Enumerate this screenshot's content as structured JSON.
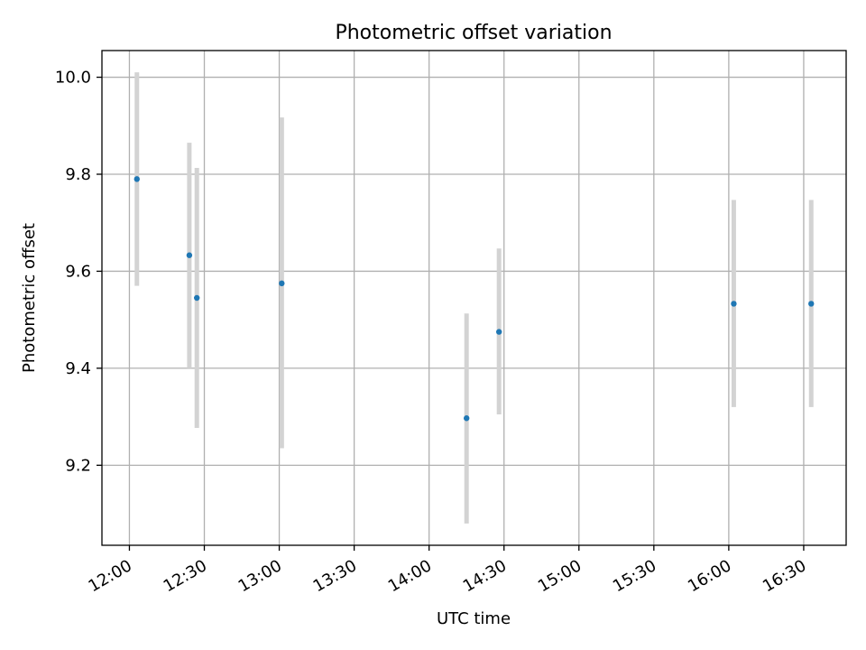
{
  "chart_data": {
    "type": "scatter",
    "title": "Photometric offset variation",
    "xlabel": "UTC time",
    "ylabel": "Photometric offset",
    "x_ticks": [
      "12:00",
      "12:30",
      "13:00",
      "13:30",
      "14:00",
      "14:30",
      "15:00",
      "15:30",
      "16:00",
      "16:30"
    ],
    "y_ticks": [
      "9.2",
      "9.4",
      "9.6",
      "9.8",
      "10.0"
    ],
    "xlim": [
      "11:49",
      "16:47"
    ],
    "ylim": [
      9.035,
      10.055
    ],
    "grid": true,
    "colors": {
      "point": "#1f77b4",
      "errorbar": "#d3d3d3",
      "grid": "#b0b0b0"
    },
    "series": [
      {
        "points": [
          {
            "x": "12:03",
            "y": 9.79,
            "err_low": 9.57,
            "err_high": 10.01
          },
          {
            "x": "12:24",
            "y": 9.633,
            "err_low": 9.4,
            "err_high": 9.865
          },
          {
            "x": "12:27",
            "y": 9.545,
            "err_low": 9.277,
            "err_high": 9.813
          },
          {
            "x": "13:01",
            "y": 9.575,
            "err_low": 9.235,
            "err_high": 9.917
          },
          {
            "x": "14:15",
            "y": 9.297,
            "err_low": 9.08,
            "err_high": 9.513
          },
          {
            "x": "14:28",
            "y": 9.475,
            "err_low": 9.305,
            "err_high": 9.647
          },
          {
            "x": "16:02",
            "y": 9.533,
            "err_low": 9.32,
            "err_high": 9.747
          },
          {
            "x": "16:33",
            "y": 9.533,
            "err_low": 9.32,
            "err_high": 9.747
          }
        ]
      }
    ]
  }
}
